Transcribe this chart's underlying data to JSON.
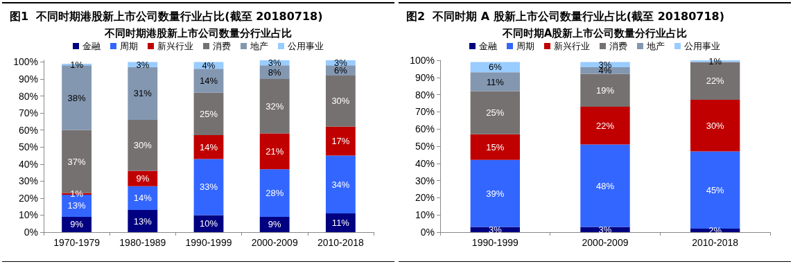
{
  "chart_data": [
    {
      "type": "bar",
      "title": "图1  不同时期港股新上市公司数量行业占比(截至 20180718)",
      "subtitle": "不同时期港股新上市公司数量分行业占比",
      "categories": [
        "1970-1979",
        "1980-1989",
        "1990-1999",
        "2000-2009",
        "2010-2018"
      ],
      "stacked": true,
      "legend": "top",
      "grid": false,
      "ylim": [
        0,
        101
      ],
      "yticks": [
        {
          "value": 0,
          "label": "0%"
        },
        {
          "value": 10,
          "label": "10%"
        },
        {
          "value": 20,
          "label": "20%"
        },
        {
          "value": 30,
          "label": "30%"
        },
        {
          "value": 40,
          "label": "40%"
        },
        {
          "value": 50,
          "label": "50%"
        },
        {
          "value": 60,
          "label": "60%"
        },
        {
          "value": 70,
          "label": "70%"
        },
        {
          "value": 80,
          "label": "80%"
        },
        {
          "value": 90,
          "label": "90%"
        },
        {
          "value": 100,
          "label": "100%"
        }
      ],
      "series": [
        {
          "name": "金融",
          "color": "#000080",
          "values": [
            9,
            13,
            10,
            9,
            11
          ],
          "value_labels": [
            "9%",
            "13%",
            "10%",
            "9%",
            "11%"
          ]
        },
        {
          "name": "周期",
          "color": "#3366ff",
          "values": [
            13,
            14,
            33,
            28,
            34
          ],
          "value_labels": [
            "13%",
            "14%",
            "33%",
            "28%",
            "34%"
          ]
        },
        {
          "name": "新兴行业",
          "color": "#c00000",
          "values": [
            1,
            9,
            14,
            21,
            17
          ],
          "value_labels": [
            "1%",
            "9%",
            "14%",
            "21%",
            "17%"
          ]
        },
        {
          "name": "消费",
          "color": "#767171",
          "values": [
            37,
            30,
            25,
            32,
            30
          ],
          "value_labels": [
            "37%",
            "30%",
            "25%",
            "32%",
            "30%"
          ]
        },
        {
          "name": "地产",
          "color": "#8497b0",
          "values": [
            38,
            31,
            14,
            8,
            6
          ],
          "value_labels": [
            "38%",
            "31%",
            "14%",
            "8%",
            "6%"
          ]
        },
        {
          "name": "公用事业",
          "color": "#99ccff",
          "values": [
            1,
            3,
            4,
            3,
            3
          ],
          "value_labels": [
            "1%",
            "3%",
            "4%",
            "3%",
            "3%"
          ]
        }
      ]
    },
    {
      "type": "bar",
      "title": "图2  不同时期 A 股新上市公司数量行业占比(截至 20180718)",
      "subtitle": "不同时期A股新上市公司数量分行业占比",
      "categories": [
        "1990-1999",
        "2000-2009",
        "2010-2018"
      ],
      "stacked": true,
      "legend": "top",
      "grid": false,
      "ylim": [
        0,
        100
      ],
      "yticks": [
        {
          "value": 0,
          "label": "0%"
        },
        {
          "value": 10,
          "label": "10%"
        },
        {
          "value": 20,
          "label": "20%"
        },
        {
          "value": 30,
          "label": "30%"
        },
        {
          "value": 40,
          "label": "40%"
        },
        {
          "value": 50,
          "label": "50%"
        },
        {
          "value": 60,
          "label": "60%"
        },
        {
          "value": 70,
          "label": "70%"
        },
        {
          "value": 80,
          "label": "80%"
        },
        {
          "value": 90,
          "label": "90%"
        },
        {
          "value": 100,
          "label": "100%"
        }
      ],
      "series": [
        {
          "name": "金融",
          "color": "#000080",
          "values": [
            3,
            3,
            2
          ],
          "value_labels": [
            "3%",
            "3%",
            "2%"
          ]
        },
        {
          "name": "周期",
          "color": "#3366ff",
          "values": [
            39,
            48,
            45
          ],
          "value_labels": [
            "39%",
            "48%",
            "45%"
          ]
        },
        {
          "name": "新兴行业",
          "color": "#c00000",
          "values": [
            15,
            22,
            30
          ],
          "value_labels": [
            "15%",
            "22%",
            "30%"
          ]
        },
        {
          "name": "消费",
          "color": "#767171",
          "values": [
            25,
            19,
            22
          ],
          "value_labels": [
            "25%",
            "19%",
            "22%"
          ]
        },
        {
          "name": "地产",
          "color": "#8497b0",
          "values": [
            11,
            4,
            null
          ],
          "value_labels": [
            "11%",
            "4%",
            null
          ]
        },
        {
          "name": "公用事业",
          "color": "#99ccff",
          "values": [
            6,
            3,
            1
          ],
          "value_labels": [
            "6%",
            "3%",
            "1%"
          ]
        }
      ]
    }
  ]
}
